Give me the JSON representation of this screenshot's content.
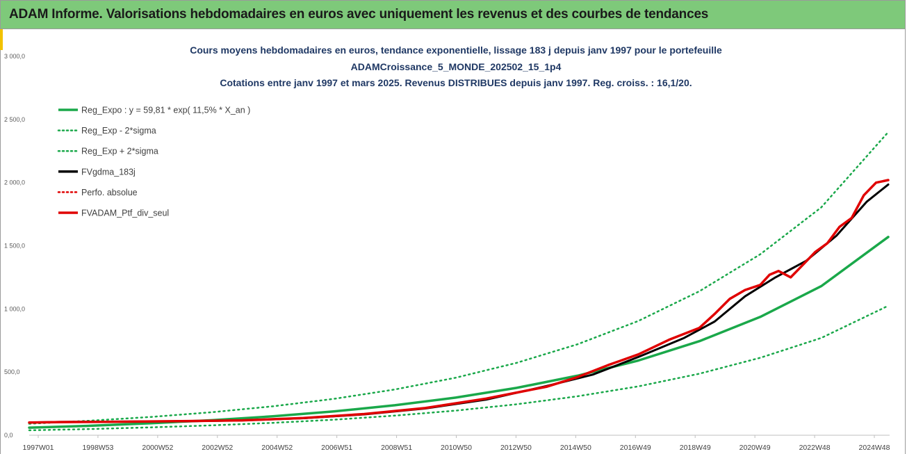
{
  "header": {
    "title": "ADAM Informe. Valorisations hebdomadaires en euros avec uniquement les revenus et des courbes de tendances"
  },
  "colors": {
    "banner": "#7ec97a",
    "green": "#1aa84a",
    "red": "#e00000",
    "black": "#000000",
    "title": "#1f3864"
  },
  "chart_data": {
    "type": "line",
    "title_lines": [
      "Cours moyens hebdomadaires  en euros,  tendance exponentielle, lissage 183 j depuis janv 1997 pour le portefeuille",
      "ADAMCroissance_5_MONDE_202502_15_1p4",
      "Cotations  entre janv 1997 et mars 2025. Revenus DISTRIBUES depuis janv 1997. Reg. croiss. : 16,1/20."
    ],
    "xlabel": "",
    "ylabel": "",
    "ylim": [
      0,
      3000
    ],
    "yticks": [
      "0,0",
      "500,0",
      "1 000,0",
      "1 500,0",
      "2 000,0",
      "2 500,0",
      "3 000,0"
    ],
    "xticks": [
      "1997W01",
      "1998W53",
      "2000W52",
      "2002W52",
      "2004W52",
      "2006W51",
      "2008W51",
      "2010W50",
      "2012W50",
      "2014W50",
      "2016W49",
      "2018W49",
      "2020W49",
      "2022W48",
      "2024W48"
    ],
    "xlim": [
      1997.0,
      2025.2
    ],
    "grid": false,
    "legend_position": "top-left",
    "legend": [
      {
        "label": "Reg_Expo : y = 59,81 * exp( 11,5% *  X_an )",
        "color": "#1aa84a",
        "style": "solid",
        "width": 3.5
      },
      {
        "label": "Reg_Exp - 2*sigma",
        "color": "#1aa84a",
        "style": "dotted",
        "width": 2.5
      },
      {
        "label": "Reg_Exp + 2*sigma",
        "color": "#1aa84a",
        "style": "dotted",
        "width": 2.5
      },
      {
        "label": "FVgdma_183j",
        "color": "#000000",
        "style": "solid",
        "width": 3.5
      },
      {
        "label": "Perfo. absolue",
        "color": "#e00000",
        "style": "dotted",
        "width": 2.5
      },
      {
        "label": "FVADAM_Ptf_div_seul",
        "color": "#e00000",
        "style": "solid",
        "width": 3.5
      }
    ],
    "series": [
      {
        "name": "Reg_Expo : y = 59,81 * exp( 11,5% *  X_an )",
        "color": "#1aa84a",
        "style": "solid",
        "width": 3.5,
        "x": [
          1997,
          1999,
          2001,
          2003,
          2005,
          2007,
          2009,
          2011,
          2013,
          2015,
          2017,
          2019,
          2021,
          2023,
          2025.2
        ],
        "y": [
          60,
          75,
          95,
          119,
          150,
          188,
          237,
          298,
          375,
          471,
          592,
          745,
          937,
          1180,
          1570
        ]
      },
      {
        "name": "Reg_Exp - 2*sigma",
        "color": "#1aa84a",
        "style": "dotted",
        "width": 2.5,
        "x": [
          1997,
          1999,
          2001,
          2003,
          2005,
          2007,
          2009,
          2011,
          2013,
          2015,
          2017,
          2019,
          2021,
          2023,
          2025.2
        ],
        "y": [
          39,
          49,
          62,
          78,
          98,
          123,
          155,
          195,
          245,
          308,
          387,
          487,
          613,
          770,
          1025
        ]
      },
      {
        "name": "Reg_Exp + 2*sigma",
        "color": "#1aa84a",
        "style": "dotted",
        "width": 2.5,
        "x": [
          1997,
          1999,
          2001,
          2003,
          2005,
          2007,
          2009,
          2011,
          2013,
          2015,
          2017,
          2019,
          2021,
          2023,
          2025.2
        ],
        "y": [
          91,
          115,
          145,
          182,
          229,
          288,
          362,
          455,
          573,
          720,
          905,
          1140,
          1433,
          1804,
          2400
        ]
      },
      {
        "name": "FVgdma_183j",
        "color": "#000000",
        "style": "solid",
        "width": 3,
        "x": [
          1997,
          1998,
          2000,
          2002,
          2004,
          2006,
          2008,
          2010,
          2012,
          2014,
          2015.5,
          2017,
          2018.5,
          2019.5,
          2020.5,
          2021.5,
          2022.5,
          2023.5,
          2024.5,
          2025.2
        ],
        "y": [
          100,
          105,
          108,
          110,
          118,
          135,
          165,
          212,
          282,
          390,
          480,
          620,
          770,
          900,
          1100,
          1250,
          1380,
          1580,
          1850,
          1985
        ]
      },
      {
        "name": "FVADAM_Ptf_div_seul",
        "color": "#e00000",
        "style": "solid",
        "width": 3.5,
        "x": [
          1997,
          1998,
          2000,
          2002,
          2004,
          2006,
          2008,
          2010,
          2012,
          2014,
          2015,
          2016,
          2017,
          2018,
          2019,
          2019.5,
          2020,
          2020.5,
          2021,
          2021.3,
          2021.6,
          2022,
          2022.4,
          2022.8,
          2023.2,
          2023.6,
          2024,
          2024.4,
          2024.8,
          2025.2
        ],
        "y": [
          100,
          104,
          107,
          112,
          118,
          136,
          168,
          215,
          290,
          385,
          460,
          555,
          640,
          755,
          850,
          960,
          1080,
          1150,
          1190,
          1270,
          1300,
          1250,
          1350,
          1450,
          1520,
          1650,
          1720,
          1900,
          2000,
          2020
        ]
      }
    ]
  }
}
